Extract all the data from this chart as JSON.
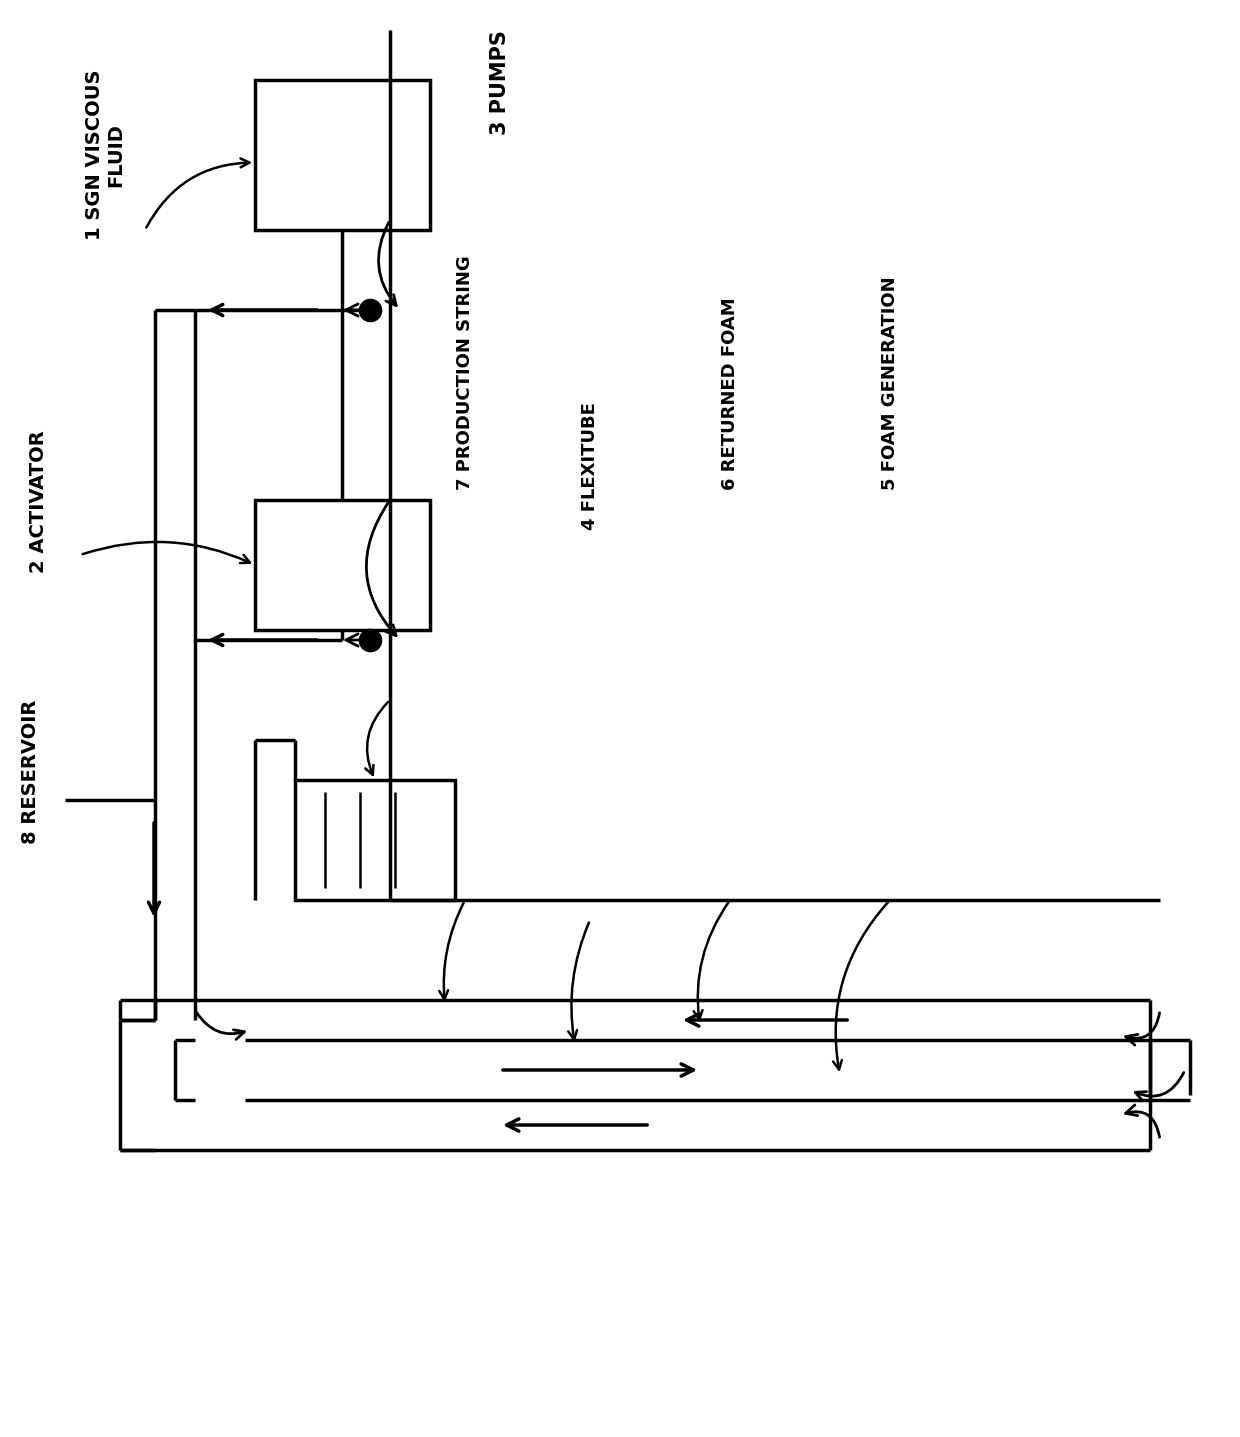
{
  "bg_color": "#ffffff",
  "line_color": "#000000",
  "labels": {
    "sgn": "1 SGN VISCOUS\nFLUID",
    "activator": "2 ACTIVATOR",
    "pumps": "3 PUMPS",
    "production_string": "7 PRODUCTION STRING",
    "flexitube": "4 FLEXITUBE",
    "returned_foam": "6 RETURNED FOAM",
    "foam_generation": "5 FOAM GENERATION",
    "reservoir": "8 RESERVOIR"
  },
  "figsize": [
    12.4,
    14.37
  ],
  "dpi": 100
}
